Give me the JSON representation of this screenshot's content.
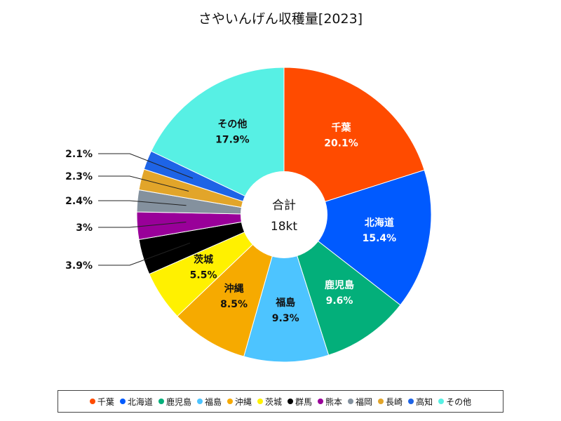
{
  "chart_data": {
    "type": "pie",
    "title": "さやいんげん収穫量[2023]",
    "center_label": "合計",
    "center_value": "18kt",
    "slices": [
      {
        "name": "千葉",
        "value": 20.1,
        "label": "20.1%",
        "color": "#ff4b00",
        "text_color": "#ffffff",
        "inside": true
      },
      {
        "name": "北海道",
        "value": 15.4,
        "label": "15.4%",
        "color": "#005aff",
        "text_color": "#ffffff",
        "inside": true
      },
      {
        "name": "鹿児島",
        "value": 9.6,
        "label": "9.6%",
        "color": "#03af7a",
        "text_color": "#ffffff",
        "inside": true
      },
      {
        "name": "福島",
        "value": 9.3,
        "label": "9.3%",
        "color": "#4dc4ff",
        "text_color": "#111111",
        "inside": true
      },
      {
        "name": "沖縄",
        "value": 8.5,
        "label": "8.5%",
        "color": "#f6aa00",
        "text_color": "#111111",
        "inside": true
      },
      {
        "name": "茨城",
        "value": 5.5,
        "label": "5.5%",
        "color": "#fff100",
        "text_color": "#111111",
        "inside": true
      },
      {
        "name": "群馬",
        "value": 3.9,
        "label": "3.9%",
        "color": "#000000",
        "text_color": "#111111",
        "inside": false
      },
      {
        "name": "熊本",
        "value": 3.0,
        "label": "3%",
        "color": "#990099",
        "text_color": "#111111",
        "inside": false
      },
      {
        "name": "福岡",
        "value": 2.4,
        "label": "2.4%",
        "color": "#84919e",
        "text_color": "#111111",
        "inside": false
      },
      {
        "name": "長崎",
        "value": 2.3,
        "label": "2.3%",
        "color": "#e2a52a",
        "text_color": "#111111",
        "inside": false
      },
      {
        "name": "高知",
        "value": 2.1,
        "label": "2.1%",
        "color": "#1e64e6",
        "text_color": "#111111",
        "inside": false
      },
      {
        "name": "その他",
        "value": 17.9,
        "label": "17.9%",
        "color": "#57f0e4",
        "text_color": "#111111",
        "inside": true
      }
    ],
    "legend_position": "bottom"
  }
}
